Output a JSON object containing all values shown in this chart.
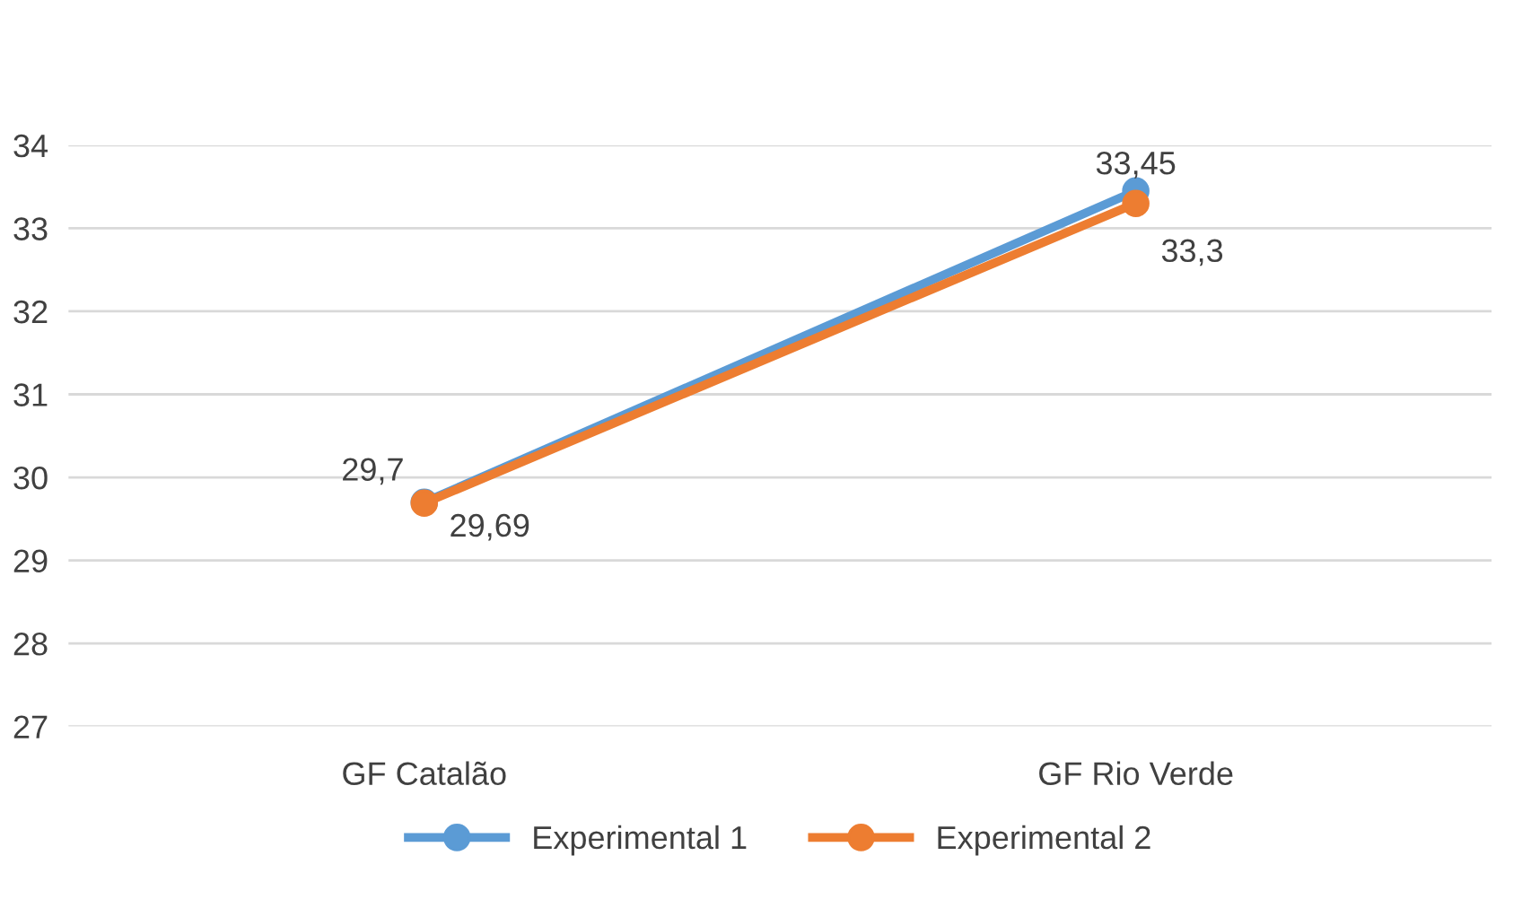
{
  "chart_data": {
    "type": "line",
    "categories": [
      "GF Catalão",
      "GF Rio Verde"
    ],
    "series": [
      {
        "name": "Experimental 1",
        "color": "#5b9bd5",
        "values": [
          29.7,
          33.45
        ],
        "value_labels": [
          "29,7",
          "33,45"
        ]
      },
      {
        "name": "Experimental 2",
        "color": "#ed7d31",
        "values": [
          29.69,
          33.3
        ],
        "value_labels": [
          "29,69",
          "33,3"
        ]
      }
    ],
    "ylim": [
      27,
      34
    ],
    "yticks": [
      27,
      28,
      29,
      30,
      31,
      32,
      33,
      34
    ],
    "grid": "y",
    "legend": "bottom",
    "marker": "circle",
    "line_style": "solid"
  }
}
